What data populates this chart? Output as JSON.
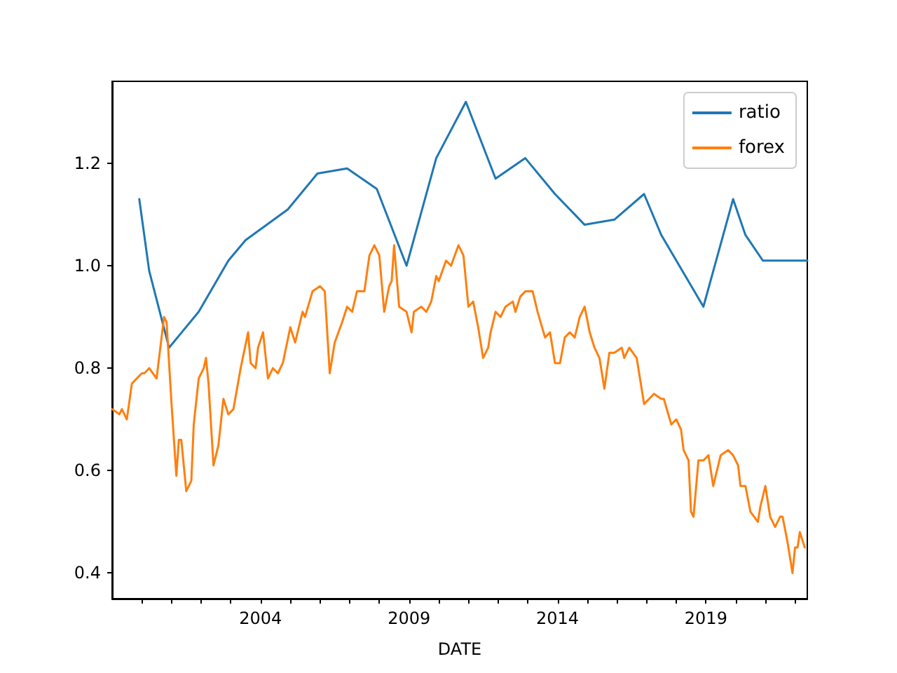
{
  "chart_data": {
    "type": "line",
    "xlabel": "DATE",
    "legend": "top right",
    "grid": false,
    "xlim": [
      "1999-01",
      "2022-06"
    ],
    "xticks": [
      {
        "value": "2000",
        "label": null
      },
      {
        "value": "2001",
        "label": null
      },
      {
        "value": "2002",
        "label": null
      },
      {
        "value": "2003",
        "label": null
      },
      {
        "value": "2004",
        "label": "2004"
      },
      {
        "value": "2005",
        "label": null
      },
      {
        "value": "2006",
        "label": null
      },
      {
        "value": "2007",
        "label": null
      },
      {
        "value": "2008",
        "label": null
      },
      {
        "value": "2009",
        "label": "2009"
      },
      {
        "value": "2010",
        "label": null
      },
      {
        "value": "2011",
        "label": null
      },
      {
        "value": "2012",
        "label": null
      },
      {
        "value": "2013",
        "label": null
      },
      {
        "value": "2014",
        "label": "2014"
      },
      {
        "value": "2015",
        "label": null
      },
      {
        "value": "2016",
        "label": null
      },
      {
        "value": "2017",
        "label": null
      },
      {
        "value": "2018",
        "label": null
      },
      {
        "value": "2019",
        "label": "2019"
      },
      {
        "value": "2020",
        "label": null
      },
      {
        "value": "2021",
        "label": null
      },
      {
        "value": "2022",
        "label": null
      }
    ],
    "ylim": [
      0.35,
      1.36
    ],
    "yticks": [
      {
        "value": 0.4,
        "label": "0.4"
      },
      {
        "value": 0.6,
        "label": "0.6"
      },
      {
        "value": 0.8,
        "label": "0.8"
      },
      {
        "value": 1,
        "label": "1.0"
      },
      {
        "value": 1.2,
        "label": "1.2"
      }
    ],
    "series": [
      {
        "name": "ratio",
        "color": "#1f77b4",
        "x": [
          "1999-12",
          "2000-04",
          "2000-12",
          "2001-12",
          "2002-12",
          "2003-07",
          "2004-12",
          "2005-12",
          "2006-12",
          "2007-12",
          "2008-12",
          "2009-12",
          "2010-12",
          "2011-12",
          "2012-12",
          "2013-12",
          "2014-12",
          "2015-12",
          "2016-12",
          "2017-07",
          "2018-12",
          "2019-12",
          "2020-05",
          "2020-12",
          "2022-06"
        ],
        "values": [
          1.13,
          0.99,
          0.84,
          0.91,
          1.01,
          1.05,
          1.11,
          1.18,
          1.19,
          1.15,
          1.0,
          1.21,
          1.32,
          1.17,
          1.21,
          1.14,
          1.08,
          1.09,
          1.14,
          1.06,
          0.92,
          1.13,
          1.06,
          1.01,
          1.01
        ]
      },
      {
        "name": "forex",
        "color": "#ff7f0e",
        "x": [
          "1999-01",
          "1999-04",
          "1999-05",
          "1999-07",
          "1999-09",
          "1999-11",
          "2000-01",
          "2000-02",
          "2000-04",
          "2000-07",
          "2000-10",
          "2000-11",
          "2001-01",
          "2001-03",
          "2001-04",
          "2001-05",
          "2001-07",
          "2001-09",
          "2001-10",
          "2001-12",
          "2002-02",
          "2002-03",
          "2002-04",
          "2002-06",
          "2002-08",
          "2002-10",
          "2002-12",
          "2003-02",
          "2003-05",
          "2003-08",
          "2003-09",
          "2003-11",
          "2003-12",
          "2004-02",
          "2004-04",
          "2004-06",
          "2004-08",
          "2004-10",
          "2005-01",
          "2005-03",
          "2005-06",
          "2005-07",
          "2005-10",
          "2006-01",
          "2006-03",
          "2006-05",
          "2006-07",
          "2006-10",
          "2006-12",
          "2007-02",
          "2007-04",
          "2007-07",
          "2007-09",
          "2007-11",
          "2008-01",
          "2008-03",
          "2008-05",
          "2008-06",
          "2008-07",
          "2008-09",
          "2008-12",
          "2009-02",
          "2009-03",
          "2009-06",
          "2009-08",
          "2009-10",
          "2009-12",
          "2010-01",
          "2010-04",
          "2010-06",
          "2010-09",
          "2010-11",
          "2011-01",
          "2011-03",
          "2011-05",
          "2011-07",
          "2011-09",
          "2011-10",
          "2011-12",
          "2012-02",
          "2012-04",
          "2012-07",
          "2012-08",
          "2012-10",
          "2012-12",
          "2013-03",
          "2013-05",
          "2013-08",
          "2013-10",
          "2013-12",
          "2014-02",
          "2014-04",
          "2014-06",
          "2014-08",
          "2014-10",
          "2014-12",
          "2015-02",
          "2015-04",
          "2015-06",
          "2015-08",
          "2015-10",
          "2015-12",
          "2016-03",
          "2016-04",
          "2016-06",
          "2016-09",
          "2016-12",
          "2017-02",
          "2017-04",
          "2017-07",
          "2017-08",
          "2017-11",
          "2018-01",
          "2018-03",
          "2018-04",
          "2018-06",
          "2018-07",
          "2018-08",
          "2018-10",
          "2018-12",
          "2019-02",
          "2019-04",
          "2019-07",
          "2019-10",
          "2019-12",
          "2020-02",
          "2020-03",
          "2020-05",
          "2020-07",
          "2020-10",
          "2020-11",
          "2021-01",
          "2021-03",
          "2021-05",
          "2021-07",
          "2021-08",
          "2021-10",
          "2021-12",
          "2022-01",
          "2022-02",
          "2022-03",
          "2022-05"
        ],
        "values": [
          0.72,
          0.71,
          0.72,
          0.7,
          0.77,
          0.78,
          0.79,
          0.79,
          0.8,
          0.78,
          0.9,
          0.89,
          0.73,
          0.59,
          0.66,
          0.66,
          0.56,
          0.58,
          0.69,
          0.78,
          0.8,
          0.82,
          0.77,
          0.61,
          0.65,
          0.74,
          0.71,
          0.72,
          0.8,
          0.87,
          0.81,
          0.8,
          0.84,
          0.87,
          0.78,
          0.8,
          0.79,
          0.81,
          0.88,
          0.85,
          0.91,
          0.9,
          0.95,
          0.96,
          0.95,
          0.79,
          0.85,
          0.89,
          0.92,
          0.91,
          0.95,
          0.95,
          1.02,
          1.04,
          1.02,
          0.91,
          0.96,
          0.97,
          1.04,
          0.92,
          0.91,
          0.87,
          0.91,
          0.92,
          0.91,
          0.93,
          0.98,
          0.97,
          1.01,
          1.0,
          1.04,
          1.02,
          0.92,
          0.93,
          0.88,
          0.82,
          0.84,
          0.87,
          0.91,
          0.9,
          0.92,
          0.93,
          0.91,
          0.94,
          0.95,
          0.95,
          0.91,
          0.86,
          0.87,
          0.81,
          0.81,
          0.86,
          0.87,
          0.86,
          0.9,
          0.92,
          0.87,
          0.84,
          0.82,
          0.76,
          0.83,
          0.83,
          0.84,
          0.82,
          0.84,
          0.82,
          0.73,
          0.74,
          0.75,
          0.74,
          0.74,
          0.69,
          0.7,
          0.68,
          0.64,
          0.62,
          0.52,
          0.51,
          0.62,
          0.62,
          0.63,
          0.57,
          0.63,
          0.64,
          0.63,
          0.61,
          0.57,
          0.57,
          0.52,
          0.5,
          0.53,
          0.57,
          0.51,
          0.49,
          0.51,
          0.51,
          0.46,
          0.4,
          0.45,
          0.45,
          0.48,
          0.45
        ]
      }
    ]
  }
}
